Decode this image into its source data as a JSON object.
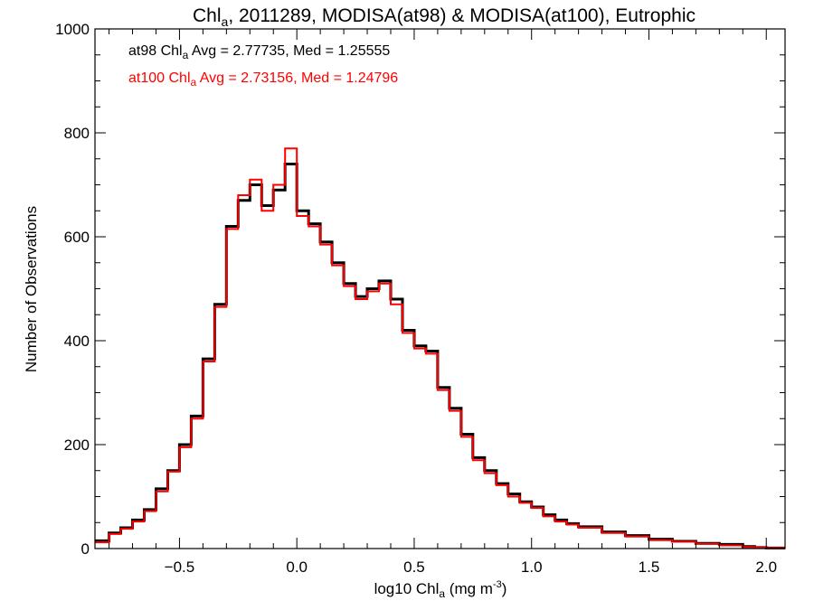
{
  "chart_data": {
    "type": "line",
    "style": "step-histogram",
    "title": {
      "main": "Chl",
      "main_sub": "a",
      "rest": ", 2011289, MODISA(at98) & MODISA(at100), Eutrophic"
    },
    "xlabel": {
      "pre": "log10 Chl",
      "sub": "a",
      "post": " (mg m",
      "sup": "-3",
      "close": ")"
    },
    "ylabel": "Number of Observations",
    "xlim": [
      -0.86,
      2.08
    ],
    "ylim": [
      0,
      1000
    ],
    "x_ticks": [
      -0.5,
      0.0,
      0.5,
      1.0,
      1.5,
      2.0
    ],
    "x_tick_labels": [
      "−0.5",
      "0.0",
      "0.5",
      "1.0",
      "1.5",
      "2.0"
    ],
    "y_ticks": [
      0,
      200,
      400,
      600,
      800,
      1000
    ],
    "y_tick_labels": [
      "0",
      "200",
      "400",
      "600",
      "800",
      "1000"
    ],
    "grid": false,
    "legend": [
      {
        "pre": "at98 Chl",
        "sub": "a",
        "post": " Avg = 2.77735, Med = 1.25555",
        "color": "#000000"
      },
      {
        "pre": "at100 Chl",
        "sub": "a",
        "post": " Avg = 2.73156, Med = 1.24796",
        "color": "#ff0000"
      }
    ],
    "legend_position": "top-left",
    "series": [
      {
        "color": "#000000",
        "x": [
          -0.86,
          -0.8,
          -0.75,
          -0.7,
          -0.65,
          -0.6,
          -0.55,
          -0.5,
          -0.45,
          -0.4,
          -0.35,
          -0.3,
          -0.25,
          -0.2,
          -0.15,
          -0.1,
          -0.05,
          0.0,
          0.05,
          0.1,
          0.15,
          0.2,
          0.25,
          0.3,
          0.35,
          0.4,
          0.45,
          0.5,
          0.55,
          0.6,
          0.65,
          0.7,
          0.75,
          0.8,
          0.85,
          0.9,
          0.95,
          1.0,
          1.05,
          1.1,
          1.15,
          1.2,
          1.3,
          1.4,
          1.5,
          1.6,
          1.7,
          1.8,
          1.9,
          1.95,
          2.0,
          2.08
        ],
        "y": [
          15,
          30,
          40,
          55,
          75,
          115,
          150,
          200,
          255,
          365,
          470,
          620,
          670,
          700,
          660,
          690,
          740,
          650,
          625,
          590,
          550,
          510,
          485,
          500,
          515,
          480,
          420,
          390,
          380,
          310,
          270,
          220,
          175,
          150,
          125,
          105,
          90,
          80,
          65,
          55,
          48,
          42,
          32,
          25,
          18,
          14,
          10,
          8,
          4,
          2,
          1,
          0
        ]
      },
      {
        "color": "#ff0000",
        "x": [
          -0.86,
          -0.8,
          -0.75,
          -0.7,
          -0.65,
          -0.6,
          -0.55,
          -0.5,
          -0.45,
          -0.4,
          -0.35,
          -0.3,
          -0.25,
          -0.2,
          -0.15,
          -0.1,
          -0.05,
          0.0,
          0.05,
          0.1,
          0.15,
          0.2,
          0.25,
          0.3,
          0.35,
          0.4,
          0.45,
          0.5,
          0.55,
          0.6,
          0.65,
          0.7,
          0.75,
          0.8,
          0.85,
          0.9,
          0.95,
          1.0,
          1.05,
          1.1,
          1.15,
          1.2,
          1.3,
          1.4,
          1.5,
          1.6,
          1.7,
          1.8,
          1.9,
          1.95,
          2.0,
          2.08
        ],
        "y": [
          12,
          28,
          38,
          52,
          72,
          110,
          148,
          195,
          250,
          360,
          465,
          615,
          680,
          710,
          650,
          700,
          770,
          640,
          620,
          585,
          545,
          505,
          480,
          495,
          510,
          470,
          415,
          385,
          375,
          305,
          265,
          215,
          170,
          145,
          122,
          100,
          88,
          78,
          62,
          52,
          46,
          40,
          30,
          23,
          16,
          13,
          9,
          6,
          3,
          2,
          1,
          0
        ]
      }
    ]
  }
}
